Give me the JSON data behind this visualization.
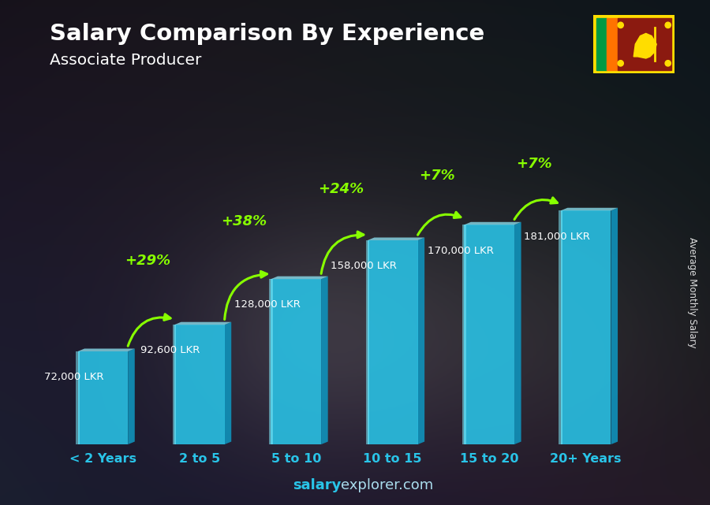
{
  "title": "Salary Comparison By Experience",
  "subtitle": "Associate Producer",
  "categories": [
    "< 2 Years",
    "2 to 5",
    "5 to 10",
    "10 to 15",
    "15 to 20",
    "20+ Years"
  ],
  "values": [
    72000,
    92600,
    128000,
    158000,
    170000,
    181000
  ],
  "value_labels": [
    "72,000 LKR",
    "92,600 LKR",
    "128,000 LKR",
    "158,000 LKR",
    "170,000 LKR",
    "181,000 LKR"
  ],
  "pct_changes": [
    null,
    "+29%",
    "+38%",
    "+24%",
    "+7%",
    "+7%"
  ],
  "bar_face_color": "#29c4e8",
  "bar_left_color": "#7ee8f8",
  "bar_right_color": "#1090b8",
  "bar_top_color": "#90e8f8",
  "background_color": "#3a3a4a",
  "title_color": "#ffffff",
  "subtitle_color": "#ffffff",
  "value_label_color": "#ffffff",
  "pct_color": "#88ff00",
  "xlabel_color": "#29c4e8",
  "watermark_salary_color": "#29c4e8",
  "watermark_rest_color": "#aaddee",
  "ylabel_text": "Average Monthly Salary",
  "ylim": [
    0,
    215000
  ],
  "bar_width": 0.52,
  "arrow_color": "#88ff00",
  "flag_border_color": "#ffdd00",
  "flag_bg_color": "#8b1a10",
  "flag_green_color": "#009a44",
  "flag_orange_color": "#ff7300"
}
